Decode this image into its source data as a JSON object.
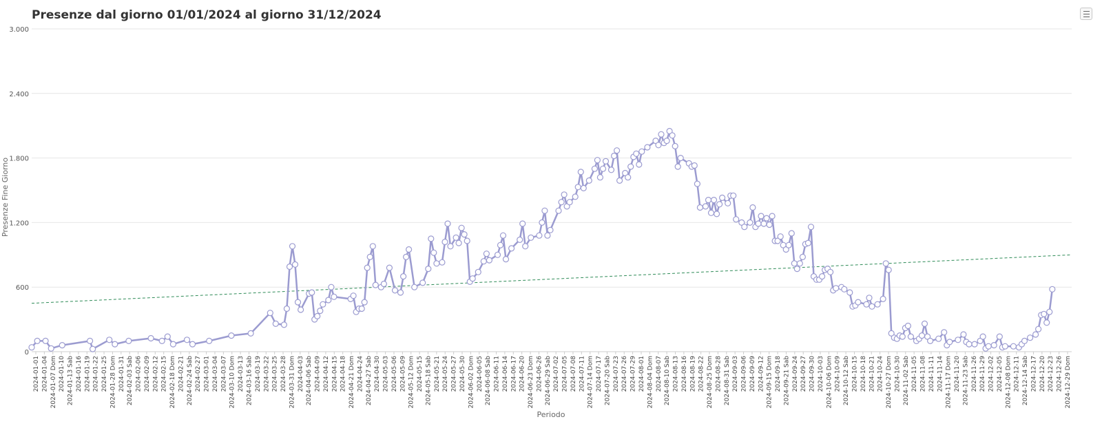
{
  "chart_data": {
    "type": "line",
    "title": "Presenze dal giorno 01/01/2024 al giorno 31/12/2024",
    "xlabel": "Periodo",
    "ylabel": "Presenze Fine Giorno",
    "ylim": [
      0,
      3000
    ],
    "y_ticks": [
      0,
      600,
      1200,
      1800,
      2400,
      3000
    ],
    "y_tick_labels": [
      "0",
      "600",
      "1.200",
      "1.800",
      "2.400",
      "3.000"
    ],
    "x_start": "2024-01-01",
    "x_end": "2024-12-31",
    "x_tick_labels": [
      "2024-01-01",
      "2024-01-04",
      "2024-01-07 Dom",
      "2024-01-10",
      "2024-01-13 Sab",
      "2024-01-16",
      "2024-01-19",
      "2024-01-22",
      "2024-01-25",
      "2024-01-28 Dom",
      "2024-01-31",
      "2024-02-03 Sab",
      "2024-02-06",
      "2024-02-09",
      "2024-02-12",
      "2024-02-15",
      "2024-02-18 Dom",
      "2024-02-21",
      "2024-02-24 Sab",
      "2024-02-27",
      "2024-03-01",
      "2024-03-04",
      "2024-03-07",
      "2024-03-10 Dom",
      "2024-03-13",
      "2024-03-16 Sab",
      "2024-03-19",
      "2024-03-22",
      "2024-03-25",
      "2024-03-28",
      "2024-03-31 Dom",
      "2024-04-03",
      "2024-04-06 Sab",
      "2024-04-09",
      "2024-04-12",
      "2024-04-15",
      "2024-04-18",
      "2024-04-21 Dom",
      "2024-04-24",
      "2024-04-27 Sab",
      "2024-04-30",
      "2024-05-03",
      "2024-05-06",
      "2024-05-09",
      "2024-05-12 Dom",
      "2024-05-15",
      "2024-05-18 Sab",
      "2024-05-21",
      "2024-05-24",
      "2024-05-27",
      "2024-05-30",
      "2024-06-02 Dom",
      "2024-06-05",
      "2024-06-08 Sab",
      "2024-06-11",
      "2024-06-14",
      "2024-06-17",
      "2024-06-20",
      "2024-06-23 Dom",
      "2024-06-26",
      "2024-06-29 Sab",
      "2024-07-02",
      "2024-07-05",
      "2024-07-08",
      "2024-07-11",
      "2024-07-14 Dom",
      "2024-07-17",
      "2024-07-20 Sab",
      "2024-07-23",
      "2024-07-26",
      "2024-07-29",
      "2024-08-01",
      "2024-08-04 Dom",
      "2024-08-07",
      "2024-08-10 Sab",
      "2024-08-13",
      "2024-08-16",
      "2024-08-19",
      "2024-08-22",
      "2024-08-25 Dom",
      "2024-08-28",
      "2024-08-31 Sab",
      "2024-09-03",
      "2024-09-06",
      "2024-09-09",
      "2024-09-12",
      "2024-09-15 Dom",
      "2024-09-18",
      "2024-09-21 Sab",
      "2024-09-24",
      "2024-09-27",
      "2024-09-30",
      "2024-10-03",
      "2024-10-06 Dom",
      "2024-10-09",
      "2024-10-12 Sab",
      "2024-10-15",
      "2024-10-18",
      "2024-10-21",
      "2024-10-24",
      "2024-10-27 Dom",
      "2024-10-30",
      "2024-11-02 Sab",
      "2024-11-05",
      "2024-11-08",
      "2024-11-11",
      "2024-11-14",
      "2024-11-17 Dom",
      "2024-11-20",
      "2024-11-23 Sab",
      "2024-11-26",
      "2024-11-29",
      "2024-12-02",
      "2024-12-05",
      "2024-12-08 Dom",
      "2024-12-11",
      "2024-12-14 Sab",
      "2024-12-17",
      "2024-12-20",
      "2024-12-23",
      "2024-12-26",
      "2024-12-29 Dom"
    ],
    "keypoints": [
      [
        "2024-01-01",
        40
      ],
      [
        "2024-01-03",
        100
      ],
      [
        "2024-01-06",
        100
      ],
      [
        "2024-01-08",
        30
      ],
      [
        "2024-01-12",
        60
      ],
      [
        "2024-01-22",
        100
      ],
      [
        "2024-01-23",
        25
      ],
      [
        "2024-01-29",
        110
      ],
      [
        "2024-01-31",
        70
      ],
      [
        "2024-02-05",
        100
      ],
      [
        "2024-02-13",
        125
      ],
      [
        "2024-02-17",
        100
      ],
      [
        "2024-02-19",
        140
      ],
      [
        "2024-02-21",
        70
      ],
      [
        "2024-02-26",
        110
      ],
      [
        "2024-02-28",
        70
      ],
      [
        "2024-03-05",
        100
      ],
      [
        "2024-03-13",
        150
      ],
      [
        "2024-03-20",
        170
      ],
      [
        "2024-03-27",
        360
      ],
      [
        "2024-03-29",
        260
      ],
      [
        "2024-04-01",
        250
      ],
      [
        "2024-04-02",
        400
      ],
      [
        "2024-04-03",
        790
      ],
      [
        "2024-04-04",
        980
      ],
      [
        "2024-04-05",
        810
      ],
      [
        "2024-04-06",
        460
      ],
      [
        "2024-04-07",
        390
      ],
      [
        "2024-04-10",
        540
      ],
      [
        "2024-04-11",
        550
      ],
      [
        "2024-04-12",
        300
      ],
      [
        "2024-04-13",
        330
      ],
      [
        "2024-04-14",
        380
      ],
      [
        "2024-04-15",
        440
      ],
      [
        "2024-04-17",
        480
      ],
      [
        "2024-04-18",
        600
      ],
      [
        "2024-04-19",
        510
      ],
      [
        "2024-04-25",
        490
      ],
      [
        "2024-04-26",
        520
      ],
      [
        "2024-04-27",
        370
      ],
      [
        "2024-04-28",
        400
      ],
      [
        "2024-04-29",
        400
      ],
      [
        "2024-04-30",
        460
      ],
      [
        "2024-05-01",
        780
      ],
      [
        "2024-05-02",
        880
      ],
      [
        "2024-05-03",
        980
      ],
      [
        "2024-05-04",
        620
      ],
      [
        "2024-05-06",
        600
      ],
      [
        "2024-05-07",
        630
      ],
      [
        "2024-05-09",
        780
      ],
      [
        "2024-05-11",
        570
      ],
      [
        "2024-05-13",
        550
      ],
      [
        "2024-05-14",
        700
      ],
      [
        "2024-05-15",
        880
      ],
      [
        "2024-05-16",
        950
      ],
      [
        "2024-05-18",
        600
      ],
      [
        "2024-05-21",
        640
      ],
      [
        "2024-05-23",
        770
      ],
      [
        "2024-05-24",
        1050
      ],
      [
        "2024-05-25",
        920
      ],
      [
        "2024-05-26",
        820
      ],
      [
        "2024-05-28",
        830
      ],
      [
        "2024-05-29",
        1020
      ],
      [
        "2024-05-30",
        1190
      ],
      [
        "2024-05-31",
        980
      ],
      [
        "2024-06-02",
        1060
      ],
      [
        "2024-06-03",
        1010
      ],
      [
        "2024-06-04",
        1150
      ],
      [
        "2024-06-05",
        1090
      ],
      [
        "2024-06-06",
        1030
      ],
      [
        "2024-06-07",
        650
      ],
      [
        "2024-06-08",
        680
      ],
      [
        "2024-06-10",
        740
      ],
      [
        "2024-06-12",
        840
      ],
      [
        "2024-06-13",
        910
      ],
      [
        "2024-06-14",
        850
      ],
      [
        "2024-06-17",
        900
      ],
      [
        "2024-06-18",
        990
      ],
      [
        "2024-06-19",
        1080
      ],
      [
        "2024-06-20",
        860
      ],
      [
        "2024-06-22",
        960
      ],
      [
        "2024-06-25",
        1040
      ],
      [
        "2024-06-26",
        1190
      ],
      [
        "2024-06-27",
        980
      ],
      [
        "2024-06-29",
        1060
      ],
      [
        "2024-07-02",
        1080
      ],
      [
        "2024-07-03",
        1200
      ],
      [
        "2024-07-04",
        1310
      ],
      [
        "2024-07-05",
        1080
      ],
      [
        "2024-07-06",
        1130
      ],
      [
        "2024-07-09",
        1310
      ],
      [
        "2024-07-10",
        1390
      ],
      [
        "2024-07-11",
        1460
      ],
      [
        "2024-07-12",
        1350
      ],
      [
        "2024-07-13",
        1390
      ],
      [
        "2024-07-15",
        1440
      ],
      [
        "2024-07-16",
        1530
      ],
      [
        "2024-07-17",
        1670
      ],
      [
        "2024-07-18",
        1520
      ],
      [
        "2024-07-20",
        1590
      ],
      [
        "2024-07-22",
        1700
      ],
      [
        "2024-07-23",
        1780
      ],
      [
        "2024-07-24",
        1620
      ],
      [
        "2024-07-25",
        1700
      ],
      [
        "2024-07-26",
        1770
      ],
      [
        "2024-07-28",
        1690
      ],
      [
        "2024-07-29",
        1820
      ],
      [
        "2024-07-30",
        1870
      ],
      [
        "2024-07-31",
        1590
      ],
      [
        "2024-08-02",
        1660
      ],
      [
        "2024-08-03",
        1620
      ],
      [
        "2024-08-04",
        1720
      ],
      [
        "2024-08-05",
        1810
      ],
      [
        "2024-08-06",
        1840
      ],
      [
        "2024-08-07",
        1740
      ],
      [
        "2024-08-08",
        1860
      ],
      [
        "2024-08-10",
        1900
      ],
      [
        "2024-08-13",
        1960
      ],
      [
        "2024-08-14",
        1920
      ],
      [
        "2024-08-15",
        2020
      ],
      [
        "2024-08-16",
        1940
      ],
      [
        "2024-08-17",
        1960
      ],
      [
        "2024-08-18",
        2050
      ],
      [
        "2024-08-19",
        2010
      ],
      [
        "2024-08-20",
        1910
      ],
      [
        "2024-08-21",
        1720
      ],
      [
        "2024-08-22",
        1800
      ],
      [
        "2024-08-25",
        1750
      ],
      [
        "2024-08-26",
        1720
      ],
      [
        "2024-08-27",
        1730
      ],
      [
        "2024-08-28",
        1560
      ],
      [
        "2024-08-29",
        1340
      ],
      [
        "2024-08-31",
        1350
      ],
      [
        "2024-09-01",
        1410
      ],
      [
        "2024-09-02",
        1290
      ],
      [
        "2024-09-03",
        1410
      ],
      [
        "2024-09-04",
        1280
      ],
      [
        "2024-09-05",
        1370
      ],
      [
        "2024-09-06",
        1430
      ],
      [
        "2024-09-08",
        1380
      ],
      [
        "2024-09-09",
        1450
      ],
      [
        "2024-09-10",
        1450
      ],
      [
        "2024-09-11",
        1230
      ],
      [
        "2024-09-13",
        1200
      ],
      [
        "2024-09-14",
        1160
      ],
      [
        "2024-09-16",
        1200
      ],
      [
        "2024-09-17",
        1340
      ],
      [
        "2024-09-18",
        1160
      ],
      [
        "2024-09-19",
        1190
      ],
      [
        "2024-09-20",
        1260
      ],
      [
        "2024-09-21",
        1190
      ],
      [
        "2024-09-22",
        1240
      ],
      [
        "2024-09-23",
        1180
      ],
      [
        "2024-09-24",
        1260
      ],
      [
        "2024-09-25",
        1030
      ],
      [
        "2024-09-26",
        1030
      ],
      [
        "2024-09-27",
        1070
      ],
      [
        "2024-09-28",
        990
      ],
      [
        "2024-09-29",
        950
      ],
      [
        "2024-09-30",
        990
      ],
      [
        "2024-10-01",
        1100
      ],
      [
        "2024-10-02",
        820
      ],
      [
        "2024-10-03",
        770
      ],
      [
        "2024-10-04",
        820
      ],
      [
        "2024-10-05",
        880
      ],
      [
        "2024-10-06",
        1000
      ],
      [
        "2024-10-07",
        1010
      ],
      [
        "2024-10-08",
        1160
      ],
      [
        "2024-10-09",
        700
      ],
      [
        "2024-10-10",
        670
      ],
      [
        "2024-10-11",
        670
      ],
      [
        "2024-10-12",
        700
      ],
      [
        "2024-10-13",
        760
      ],
      [
        "2024-10-14",
        770
      ],
      [
        "2024-10-15",
        740
      ],
      [
        "2024-10-16",
        570
      ],
      [
        "2024-10-17",
        590
      ],
      [
        "2024-10-19",
        600
      ],
      [
        "2024-10-20",
        580
      ],
      [
        "2024-10-22",
        550
      ],
      [
        "2024-10-23",
        420
      ],
      [
        "2024-10-24",
        430
      ],
      [
        "2024-10-25",
        460
      ],
      [
        "2024-10-28",
        440
      ],
      [
        "2024-10-29",
        500
      ],
      [
        "2024-10-30",
        420
      ],
      [
        "2024-11-01",
        440
      ],
      [
        "2024-11-03",
        490
      ],
      [
        "2024-11-04",
        820
      ],
      [
        "2024-11-05",
        760
      ],
      [
        "2024-11-06",
        170
      ],
      [
        "2024-11-07",
        130
      ],
      [
        "2024-11-08",
        120
      ],
      [
        "2024-11-09",
        150
      ],
      [
        "2024-11-10",
        140
      ],
      [
        "2024-11-11",
        220
      ],
      [
        "2024-11-12",
        240
      ],
      [
        "2024-11-13",
        140
      ],
      [
        "2024-11-15",
        100
      ],
      [
        "2024-11-16",
        120
      ],
      [
        "2024-11-17",
        150
      ],
      [
        "2024-11-18",
        260
      ],
      [
        "2024-11-19",
        140
      ],
      [
        "2024-11-20",
        100
      ],
      [
        "2024-11-23",
        120
      ],
      [
        "2024-11-25",
        180
      ],
      [
        "2024-11-26",
        60
      ],
      [
        "2024-11-27",
        90
      ],
      [
        "2024-11-30",
        110
      ],
      [
        "2024-12-02",
        160
      ],
      [
        "2024-12-03",
        90
      ],
      [
        "2024-12-04",
        70
      ],
      [
        "2024-12-06",
        70
      ],
      [
        "2024-12-08",
        100
      ],
      [
        "2024-12-09",
        140
      ],
      [
        "2024-12-10",
        30
      ],
      [
        "2024-12-11",
        50
      ],
      [
        "2024-12-13",
        60
      ],
      [
        "2024-12-15",
        140
      ],
      [
        "2024-12-16",
        40
      ],
      [
        "2024-12-17",
        50
      ],
      [
        "2024-12-20",
        50
      ],
      [
        "2024-12-22",
        40
      ],
      [
        "2024-12-23",
        70
      ],
      [
        "2024-12-24",
        100
      ],
      [
        "2024-12-26",
        130
      ],
      [
        "2024-12-28",
        160
      ],
      [
        "2024-12-29",
        210
      ],
      [
        "2024-12-30",
        340
      ],
      [
        "2024-12-31",
        350
      ],
      [
        "2025-01-01",
        270
      ],
      [
        "2025-01-02",
        370
      ],
      [
        "2025-01-03",
        580
      ]
    ],
    "trendline": {
      "start": 450,
      "end": 900
    },
    "grid": true,
    "legend": "none",
    "colors": {
      "line": "#9b9bd0",
      "marker_fill": "#ffffff",
      "marker_stroke": "#9b9bd0",
      "trend": "#2e8b57",
      "grid": "#e6e6e6",
      "title": "#333333"
    }
  },
  "menu_icon": "hamburger-menu-icon"
}
